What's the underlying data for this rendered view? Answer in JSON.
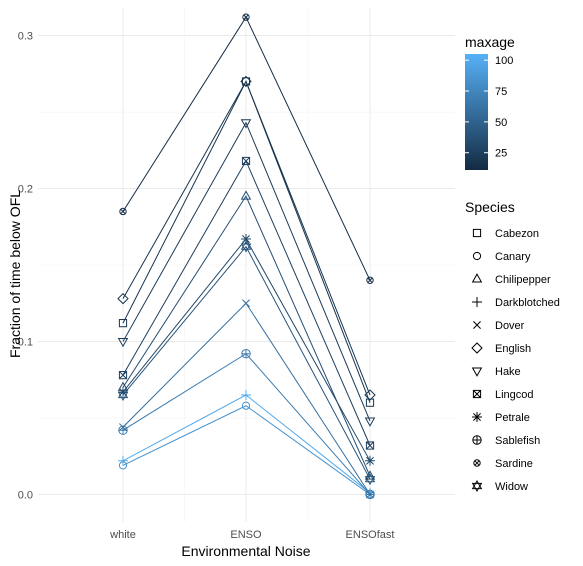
{
  "chart_data": {
    "type": "line",
    "xlabel": "Environmental Noise",
    "ylabel": "Fraction of time below OFL",
    "categories": [
      "white",
      "ENSO",
      "ENSOfast"
    ],
    "ylim": [
      -0.018,
      0.318
    ],
    "yticks": [
      0.0,
      0.1,
      0.2,
      0.3
    ],
    "ytick_labels": [
      "0.0",
      "0.1",
      "0.2",
      "0.3"
    ],
    "grid": true,
    "color_scale": {
      "title": "maxage",
      "min": 11,
      "max": 105,
      "ticks": [
        25,
        50,
        75,
        100
      ],
      "tick_labels": [
        "25",
        "50",
        "75",
        "100"
      ],
      "low_color": "#132B43",
      "high_color": "#56B1F7"
    },
    "shape_legend_title": "Species",
    "legend_position": "right",
    "series": [
      {
        "name": "Cabezon",
        "shape": "square",
        "maxage": 17,
        "values": [
          0.112,
          0.27,
          0.06
        ]
      },
      {
        "name": "Canary",
        "shape": "circle",
        "maxage": 84,
        "values": [
          0.019,
          0.058,
          0.0
        ]
      },
      {
        "name": "Chilipepper",
        "shape": "triangle",
        "maxage": 35,
        "values": [
          0.07,
          0.195,
          0.012
        ]
      },
      {
        "name": "Darkblotched",
        "shape": "plus",
        "maxage": 100,
        "values": [
          0.022,
          0.065,
          0.001
        ]
      },
      {
        "name": "Dover",
        "shape": "cross",
        "maxage": 58,
        "values": [
          0.044,
          0.125,
          0.0
        ]
      },
      {
        "name": "English",
        "shape": "diamond",
        "maxage": 17,
        "values": [
          0.128,
          0.27,
          0.065
        ]
      },
      {
        "name": "Hake",
        "shape": "triangle-down",
        "maxage": 22,
        "values": [
          0.1,
          0.243,
          0.048
        ]
      },
      {
        "name": "Lingcod",
        "shape": "boxcross",
        "maxage": 25,
        "values": [
          0.078,
          0.218,
          0.032
        ]
      },
      {
        "name": "Petrale",
        "shape": "asterisk",
        "maxage": 31,
        "values": [
          0.067,
          0.167,
          0.022
        ]
      },
      {
        "name": "Sablefish",
        "shape": "circleplus",
        "maxage": 68,
        "values": [
          0.042,
          0.092,
          0.0
        ]
      },
      {
        "name": "Sardine",
        "shape": "circlecross",
        "maxage": 13,
        "values": [
          0.185,
          0.312,
          0.14
        ]
      },
      {
        "name": "Widow",
        "shape": "hexagram",
        "maxage": 40,
        "values": [
          0.065,
          0.162,
          0.01
        ]
      }
    ]
  }
}
